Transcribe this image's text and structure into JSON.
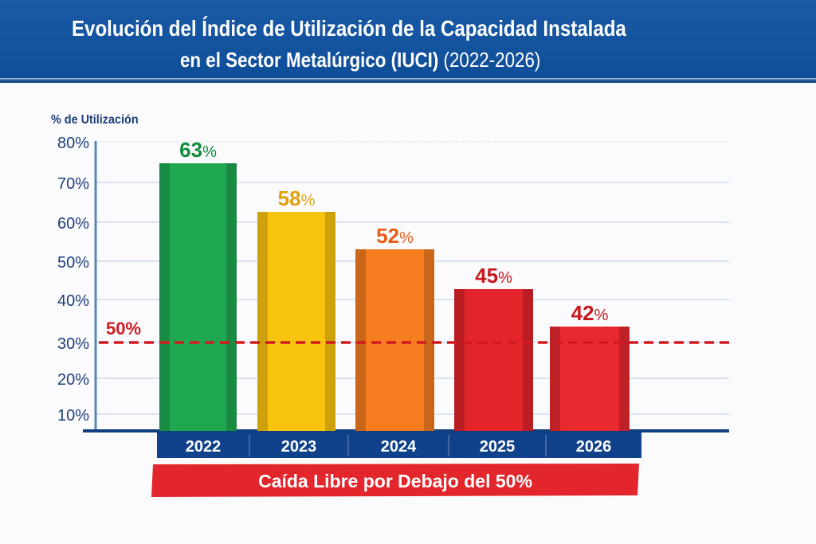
{
  "header": {
    "title_line1": "Evolución del Índice de Utilización de la Capacidad Instalada",
    "title_line2": "en el Sector Metalúrgico (IUCI)",
    "title_years": "(2022-2026)"
  },
  "chart_data": {
    "type": "bar",
    "title": "Evolución del Índice de Utilización de la Capacidad Instalada en el Sector Metalúrgico (IUCI) (2022-2026)",
    "xlabel": "",
    "ylabel": "% de Utilización",
    "categories": [
      "2022",
      "2023",
      "2024",
      "2025",
      "2026"
    ],
    "values": [
      63,
      58,
      52,
      45,
      42
    ],
    "value_labels": [
      "63%",
      "58%",
      "52%",
      "45%",
      "42%"
    ],
    "bar_colors": [
      "#1fa84f",
      "#f9c40f",
      "#f57c1f",
      "#e3242b",
      "#e8292f"
    ],
    "label_colors": [
      "#128a3e",
      "#e0a10d",
      "#e85d14",
      "#c8171e",
      "#c8171e"
    ],
    "y_ticks": [
      "10%",
      "20%",
      "30%",
      "40%",
      "50%",
      "60%",
      "70%",
      "80%"
    ],
    "ylim": [
      10,
      80
    ],
    "grid": true,
    "reference_line": {
      "label": "50%",
      "color": "#d11a1f",
      "style": "dashed"
    },
    "banner": {
      "text": "Caída Libre por Debajo del 50%",
      "color": "#e2262c"
    },
    "category_band_color": "#0f428a"
  }
}
